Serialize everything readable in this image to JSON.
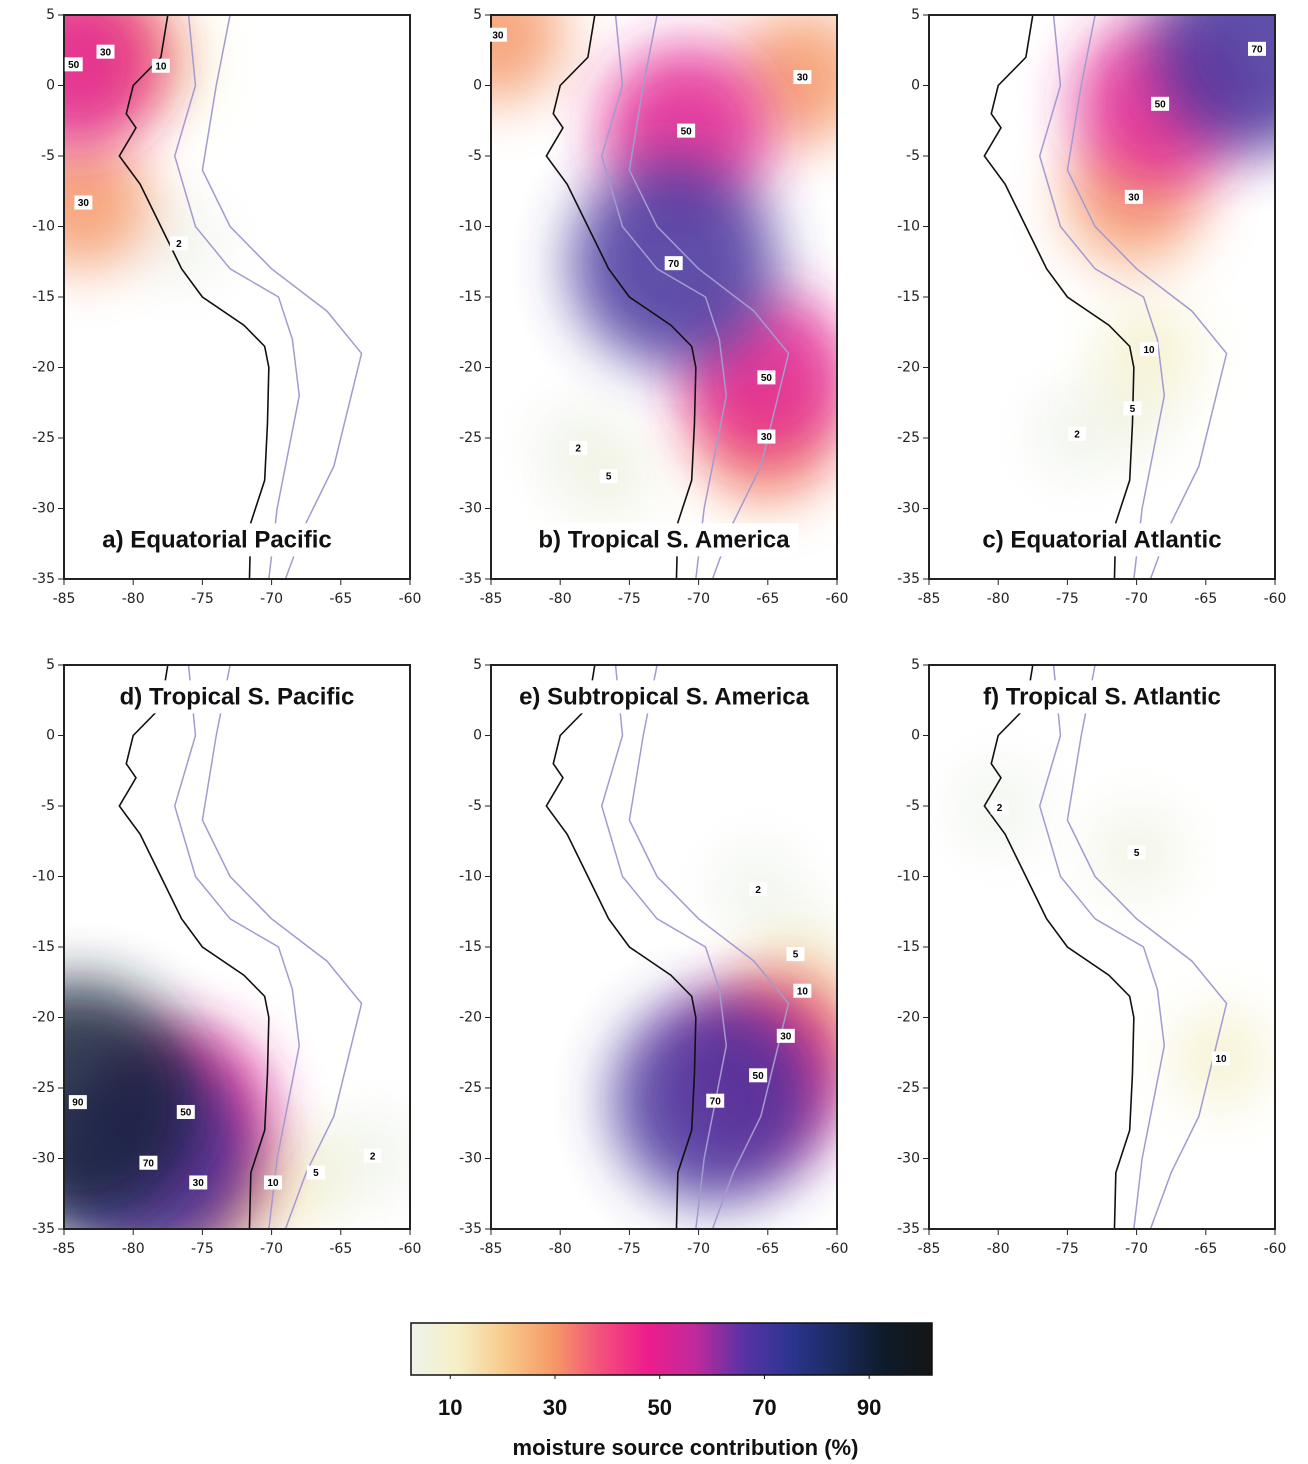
{
  "panels": [
    {
      "title": "a) Equatorial Pacific",
      "xlim": [
        -85,
        -60
      ],
      "ylim": [
        -35,
        5
      ],
      "xticks": [
        -85,
        -80,
        -75,
        -70,
        -65,
        -60
      ],
      "yticks": [
        5,
        0,
        -5,
        -10,
        -15,
        -20,
        -25,
        -30,
        -35
      ],
      "contour_labels": [
        {
          "value": 10,
          "lon": -78,
          "lat": 1.4
        },
        {
          "value": 2,
          "lon": -76.7,
          "lat": -11.2
        },
        {
          "value": 30,
          "lon": -82,
          "lat": 2.4
        },
        {
          "value": 30,
          "lon": -83.6,
          "lat": -8.3
        },
        {
          "value": 50,
          "lon": -84.3,
          "lat": 1.5
        }
      ]
    },
    {
      "title": "b) Tropical S. America",
      "xlim": [
        -85,
        -60
      ],
      "ylim": [
        -35,
        5
      ],
      "xticks": [
        -85,
        -80,
        -75,
        -70,
        -65,
        -60
      ],
      "yticks": [
        5,
        0,
        -5,
        -10,
        -15,
        -20,
        -25,
        -30,
        -35
      ],
      "contour_labels": [
        {
          "value": 2,
          "lon": -78.7,
          "lat": -25.7
        },
        {
          "value": 5,
          "lon": -76.5,
          "lat": -27.7
        },
        {
          "value": 30,
          "lon": -84.5,
          "lat": 3.6
        },
        {
          "value": 30,
          "lon": -62.5,
          "lat": 0.6
        },
        {
          "value": 30,
          "lon": -65.1,
          "lat": -24.9
        },
        {
          "value": 50,
          "lon": -70.9,
          "lat": -3.2
        },
        {
          "value": 50,
          "lon": -65.1,
          "lat": -20.7
        },
        {
          "value": 70,
          "lon": -71.8,
          "lat": -12.6
        }
      ]
    },
    {
      "title": "c) Equatorial Atlantic",
      "xlim": [
        -85,
        -60
      ],
      "ylim": [
        -35,
        5
      ],
      "xticks": [
        -85,
        -80,
        -75,
        -70,
        -65,
        -60
      ],
      "yticks": [
        5,
        0,
        -5,
        -10,
        -15,
        -20,
        -25,
        -30,
        -35
      ],
      "contour_labels": [
        {
          "value": 2,
          "lon": -74.3,
          "lat": -24.7
        },
        {
          "value": 5,
          "lon": -70.3,
          "lat": -22.9
        },
        {
          "value": 10,
          "lon": -69.1,
          "lat": -18.7
        },
        {
          "value": 30,
          "lon": -70.2,
          "lat": -7.9
        },
        {
          "value": 50,
          "lon": -68.3,
          "lat": -1.3
        },
        {
          "value": 70,
          "lon": -61.3,
          "lat": 2.6
        }
      ]
    },
    {
      "title": "d) Tropical S. Pacific",
      "xlim": [
        -85,
        -60
      ],
      "ylim": [
        -35,
        5
      ],
      "xticks": [
        -85,
        -80,
        -75,
        -70,
        -65,
        -60
      ],
      "yticks": [
        5,
        0,
        -5,
        -10,
        -15,
        -20,
        -25,
        -30,
        -35
      ],
      "contour_labels": [
        {
          "value": 2,
          "lon": -62.7,
          "lat": -29.8
        },
        {
          "value": 5,
          "lon": -66.8,
          "lat": -31
        },
        {
          "value": 10,
          "lon": -69.9,
          "lat": -31.7
        },
        {
          "value": 30,
          "lon": -75.3,
          "lat": -31.7
        },
        {
          "value": 50,
          "lon": -76.2,
          "lat": -26.7
        },
        {
          "value": 70,
          "lon": -78.9,
          "lat": -30.3
        },
        {
          "value": 90,
          "lon": -84,
          "lat": -26
        }
      ]
    },
    {
      "title": "e) Subtropical S. America",
      "xlim": [
        -85,
        -60
      ],
      "ylim": [
        -35,
        5
      ],
      "xticks": [
        -85,
        -80,
        -75,
        -70,
        -65,
        -60
      ],
      "yticks": [
        5,
        0,
        -5,
        -10,
        -15,
        -20,
        -25,
        -30,
        -35
      ],
      "contour_labels": [
        {
          "value": 2,
          "lon": -65.7,
          "lat": -10.9
        },
        {
          "value": 5,
          "lon": -63,
          "lat": -15.5
        },
        {
          "value": 10,
          "lon": -62.5,
          "lat": -18.1
        },
        {
          "value": 30,
          "lon": -63.7,
          "lat": -21.3
        },
        {
          "value": 50,
          "lon": -65.7,
          "lat": -24.1
        },
        {
          "value": 70,
          "lon": -68.8,
          "lat": -25.9
        }
      ]
    },
    {
      "title": "f) Tropical S. Atlantic",
      "xlim": [
        -85,
        -60
      ],
      "ylim": [
        -35,
        5
      ],
      "xticks": [
        -85,
        -80,
        -75,
        -70,
        -65,
        -60
      ],
      "yticks": [
        5,
        0,
        -5,
        -10,
        -15,
        -20,
        -25,
        -30,
        -35
      ],
      "contour_labels": [
        {
          "value": 2,
          "lon": -79.9,
          "lat": -5.1
        },
        {
          "value": 5,
          "lon": -70,
          "lat": -8.3
        },
        {
          "value": 10,
          "lon": -63.9,
          "lat": -22.9
        }
      ]
    }
  ],
  "colorbar": {
    "label": "moisture source contribution (%)",
    "lim": [
      2.5,
      102
    ],
    "ticks": [
      10,
      30,
      50,
      70,
      90
    ],
    "colors": [
      "#eef3ea",
      "#f6efc6",
      "#f7c98a",
      "#f59a66",
      "#f3507c",
      "#ee1c8c",
      "#c02a9c",
      "#5a32a4",
      "#2c3590",
      "#1a2a5e",
      "#0e1b2a",
      "#151515"
    ]
  }
}
